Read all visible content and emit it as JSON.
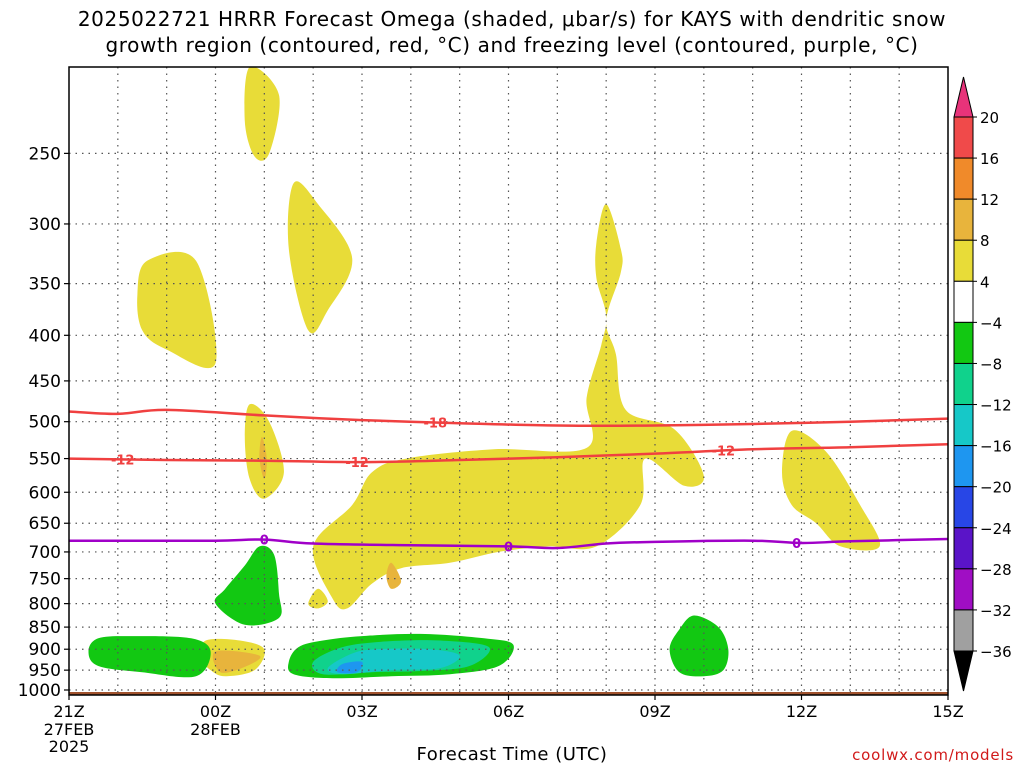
{
  "title_line1": "2025022721 HRRR Forecast Omega (shaded, μbar/s) for KAYS with dendritic snow",
  "title_line2": "growth region (contoured, red, °C) and freezing level (contoured, purple, °C)",
  "xlabel": "Forecast Time (UTC)",
  "credit": "coolwx.com/models",
  "chart_data": {
    "type": "contour",
    "x_ticks": [
      {
        "label": "21Z",
        "sub": [
          "27FEB",
          "2025"
        ]
      },
      {
        "label": "00Z",
        "sub": [
          "28FEB"
        ]
      },
      {
        "label": "03Z",
        "sub": []
      },
      {
        "label": "06Z",
        "sub": []
      },
      {
        "label": "09Z",
        "sub": []
      },
      {
        "label": "12Z",
        "sub": []
      },
      {
        "label": "15Z",
        "sub": []
      }
    ],
    "xlim_hours": [
      0,
      18
    ],
    "y_ticks": [
      250,
      300,
      350,
      400,
      450,
      500,
      550,
      600,
      650,
      700,
      750,
      800,
      850,
      900,
      950,
      1000
    ],
    "ylim_hpa": [
      1013,
      200
    ],
    "y_axis": "pressure (hPa), log scale",
    "grid": true,
    "colorbar": {
      "labels": [
        20,
        16,
        12,
        8,
        4,
        -4,
        -8,
        -12,
        -16,
        -20,
        -24,
        -28,
        -32,
        -36
      ],
      "colors": [
        "#e8337a",
        "#f04a4a",
        "#f08a2a",
        "#e8b43c",
        "#e8dc38",
        "#ffffff",
        "#12c812",
        "#10d28c",
        "#16c8c8",
        "#1e96f0",
        "#2846e6",
        "#5a14c8",
        "#a00ec4",
        "#a0a0a0",
        "#000000"
      ]
    },
    "contours": [
      {
        "name": "-18",
        "color": "#f04040",
        "points": [
          [
            0,
            487
          ],
          [
            1,
            490
          ],
          [
            2,
            485
          ],
          [
            4,
            492
          ],
          [
            6,
            498
          ],
          [
            8,
            502
          ],
          [
            10,
            505
          ],
          [
            12,
            505
          ],
          [
            14,
            503
          ],
          [
            16,
            500
          ],
          [
            18,
            496
          ]
        ],
        "labels_at": [
          7.5
        ]
      },
      {
        "name": "-12",
        "color": "#f04040",
        "points": [
          [
            0,
            550
          ],
          [
            2,
            552
          ],
          [
            4,
            553
          ],
          [
            6,
            555
          ],
          [
            8,
            552
          ],
          [
            10,
            548
          ],
          [
            12,
            543
          ],
          [
            14,
            537
          ],
          [
            16,
            534
          ],
          [
            18,
            530
          ]
        ],
        "labels_at": [
          1.1,
          5.9,
          13.4
        ]
      },
      {
        "name": "0",
        "color": "#a000c8",
        "points": [
          [
            0,
            680
          ],
          [
            1,
            680
          ],
          [
            3,
            680
          ],
          [
            4,
            678
          ],
          [
            5,
            685
          ],
          [
            7,
            688
          ],
          [
            9,
            690
          ],
          [
            10,
            693
          ],
          [
            11,
            685
          ],
          [
            12,
            682
          ],
          [
            14,
            680
          ],
          [
            15,
            684
          ],
          [
            16,
            681
          ],
          [
            18,
            677
          ]
        ],
        "labels_at": [
          4.0,
          9.0,
          14.9
        ]
      }
    ],
    "shaded_regions": [
      {
        "value": 4,
        "points": [
          [
            3.7,
            200
          ],
          [
            4.3,
            215
          ],
          [
            4.1,
            250
          ],
          [
            3.8,
            252
          ],
          [
            3.6,
            230
          ]
        ]
      },
      {
        "value": 4,
        "points": [
          [
            4.6,
            270
          ],
          [
            5.1,
            285
          ],
          [
            5.8,
            328
          ],
          [
            5.3,
            375
          ],
          [
            4.9,
            395
          ],
          [
            4.5,
            320
          ]
        ]
      },
      {
        "value": 4,
        "points": [
          [
            1.6,
            330
          ],
          [
            2.6,
            330
          ],
          [
            3.0,
            430
          ],
          [
            2.0,
            415
          ],
          [
            1.5,
            395
          ],
          [
            1.4,
            360
          ]
        ]
      },
      {
        "value": 4,
        "points": [
          [
            3.7,
            478
          ],
          [
            4.1,
            500
          ],
          [
            4.4,
            570
          ],
          [
            4.0,
            610
          ],
          [
            3.7,
            580
          ],
          [
            3.6,
            520
          ]
        ]
      },
      {
        "value": 4,
        "points": [
          [
            11.0,
            285
          ],
          [
            11.3,
            320
          ],
          [
            11.3,
            340
          ],
          [
            11.0,
            385
          ],
          [
            11.2,
            420
          ],
          [
            11.4,
            485
          ],
          [
            12.4,
            510
          ],
          [
            13.0,
            575
          ],
          [
            12.6,
            590
          ],
          [
            11.8,
            550
          ],
          [
            11.7,
            620
          ],
          [
            10.8,
            690
          ],
          [
            9.8,
            690
          ],
          [
            8.8,
            700
          ],
          [
            7.8,
            720
          ],
          [
            6.8,
            730
          ],
          [
            6.2,
            760
          ],
          [
            5.7,
            810
          ],
          [
            5.4,
            790
          ],
          [
            5.0,
            690
          ],
          [
            5.8,
            620
          ],
          [
            6.2,
            570
          ],
          [
            6.9,
            550
          ],
          [
            8.7,
            537
          ],
          [
            10.6,
            535
          ],
          [
            10.6,
            470
          ],
          [
            10.9,
            410
          ],
          [
            11.0,
            380
          ],
          [
            10.8,
            345
          ],
          [
            10.8,
            315
          ]
        ]
      },
      {
        "value": 4,
        "points": [
          [
            14.8,
            512
          ],
          [
            15.5,
            540
          ],
          [
            16.2,
            620
          ],
          [
            16.6,
            690
          ],
          [
            15.8,
            690
          ],
          [
            15.3,
            650
          ],
          [
            14.8,
            620
          ],
          [
            14.6,
            570
          ]
        ]
      },
      {
        "value": 4,
        "points": [
          [
            2.8,
            880
          ],
          [
            3.5,
            880
          ],
          [
            4.0,
            900
          ],
          [
            3.8,
            950
          ],
          [
            3.2,
            965
          ],
          [
            2.9,
            950
          ],
          [
            2.7,
            920
          ]
        ]
      },
      {
        "value": 8,
        "points": [
          [
            3.0,
            905
          ],
          [
            3.9,
            915
          ],
          [
            3.6,
            942
          ],
          [
            3.1,
            955
          ]
        ]
      },
      {
        "value": 8,
        "points": [
          [
            3.95,
            520
          ],
          [
            4.05,
            550
          ],
          [
            4.0,
            580
          ],
          [
            3.9,
            550
          ]
        ]
      },
      {
        "value": 8,
        "points": [
          [
            6.6,
            720
          ],
          [
            6.8,
            755
          ],
          [
            6.6,
            770
          ],
          [
            6.5,
            745
          ]
        ]
      },
      {
        "value": 4,
        "points": [
          [
            5.1,
            770
          ],
          [
            5.3,
            795
          ],
          [
            5.1,
            810
          ],
          [
            4.9,
            800
          ]
        ]
      },
      {
        "value": -4,
        "points": [
          [
            3.9,
            690
          ],
          [
            4.2,
            705
          ],
          [
            4.3,
            780
          ],
          [
            4.3,
            830
          ],
          [
            3.6,
            845
          ],
          [
            3.0,
            800
          ],
          [
            3.2,
            770
          ],
          [
            3.6,
            725
          ]
        ]
      },
      {
        "value": -4,
        "points": [
          [
            0.6,
            875
          ],
          [
            1.3,
            870
          ],
          [
            2.5,
            875
          ],
          [
            2.9,
            905
          ],
          [
            2.6,
            965
          ],
          [
            1.5,
            955
          ],
          [
            0.6,
            940
          ],
          [
            0.4,
            905
          ]
        ]
      },
      {
        "value": -4,
        "points": [
          [
            5.2,
            880
          ],
          [
            6.0,
            870
          ],
          [
            7.2,
            865
          ],
          [
            8.5,
            875
          ],
          [
            9.1,
            890
          ],
          [
            8.8,
            940
          ],
          [
            7.8,
            960
          ],
          [
            6.6,
            965
          ],
          [
            5.4,
            970
          ],
          [
            4.6,
            960
          ],
          [
            4.5,
            930
          ],
          [
            4.7,
            895
          ]
        ]
      },
      {
        "value": -4,
        "points": [
          [
            12.8,
            825
          ],
          [
            13.3,
            850
          ],
          [
            13.5,
            900
          ],
          [
            13.4,
            950
          ],
          [
            13.0,
            965
          ],
          [
            12.5,
            955
          ],
          [
            12.3,
            900
          ],
          [
            12.5,
            855
          ]
        ]
      },
      {
        "value": -8,
        "points": [
          [
            5.6,
            895
          ],
          [
            6.5,
            882
          ],
          [
            7.6,
            880
          ],
          [
            8.6,
            895
          ],
          [
            8.2,
            940
          ],
          [
            7.2,
            952
          ],
          [
            6.2,
            955
          ],
          [
            5.2,
            960
          ],
          [
            5.0,
            930
          ]
        ]
      },
      {
        "value": -12,
        "points": [
          [
            5.8,
            910
          ],
          [
            6.3,
            900
          ],
          [
            7.4,
            900
          ],
          [
            8.0,
            915
          ],
          [
            7.6,
            945
          ],
          [
            6.6,
            950
          ],
          [
            5.6,
            960
          ],
          [
            5.3,
            945
          ]
        ]
      },
      {
        "value": -16,
        "points": [
          [
            5.6,
            935
          ],
          [
            6.0,
            930
          ],
          [
            5.9,
            955
          ],
          [
            5.5,
            955
          ]
        ]
      }
    ]
  }
}
